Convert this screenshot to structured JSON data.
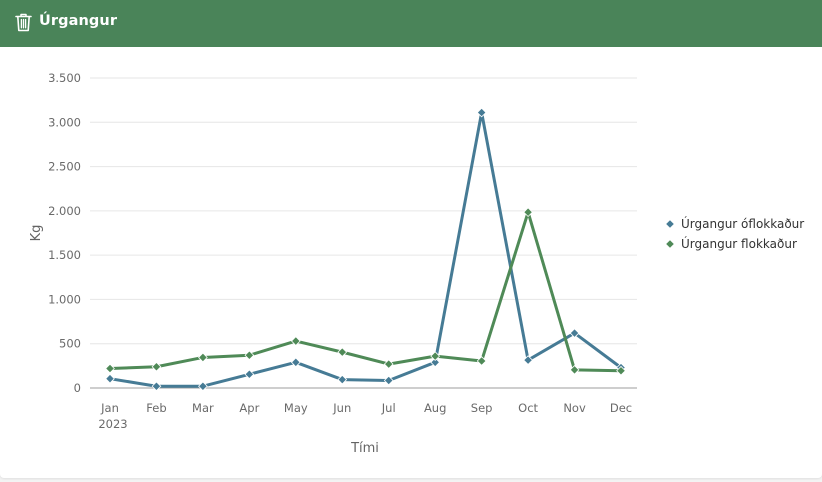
{
  "header": {
    "title": "Úrgangur",
    "icon": "trash-icon",
    "background": "#4a8459"
  },
  "chart_data": {
    "type": "line",
    "title": "",
    "xlabel": "Tími",
    "ylabel": "Kg",
    "categories": [
      "Jan",
      "Feb",
      "Mar",
      "Apr",
      "May",
      "Jun",
      "Jul",
      "Aug",
      "Sep",
      "Oct",
      "Nov",
      "Dec"
    ],
    "year_label": "2023",
    "ylim": [
      0,
      3500
    ],
    "yticks": [
      0,
      500,
      1000,
      1500,
      2000,
      2500,
      3000,
      3500
    ],
    "ytick_labels": [
      "0",
      "500",
      "1.000",
      "1.500",
      "2.000",
      "2.500",
      "3.000",
      "3.500"
    ],
    "grid": true,
    "legend_position": "right",
    "series": [
      {
        "name": "Úrgangur óflokkaður",
        "color": "#467b95",
        "values": [
          105,
          20,
          20,
          155,
          290,
          95,
          85,
          290,
          3110,
          315,
          620,
          230
        ]
      },
      {
        "name": "Úrgangur flokkaður",
        "color": "#4f8a57",
        "values": [
          220,
          240,
          345,
          370,
          530,
          405,
          270,
          360,
          305,
          1985,
          205,
          195
        ]
      }
    ]
  }
}
